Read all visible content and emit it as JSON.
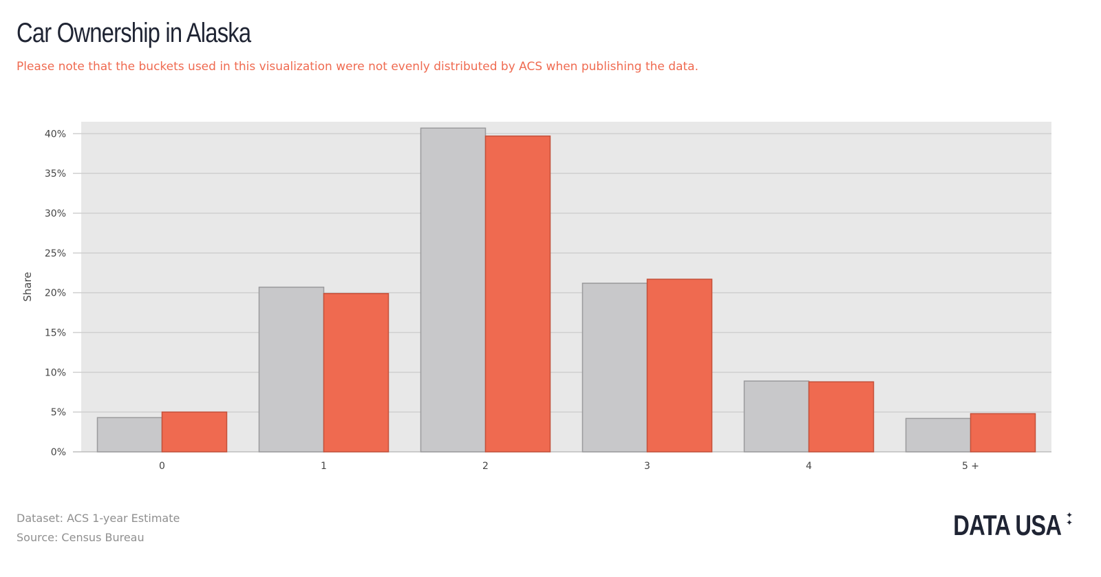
{
  "header": {
    "title": "Car Ownership in Alaska",
    "subtitle": "Please note that the buckets used in this visualization were not evenly distributed by ACS when publishing the data."
  },
  "footer": {
    "dataset": "Dataset: ACS 1-year Estimate",
    "source": "Source: Census Bureau",
    "logo": "DATA USA"
  },
  "colors": {
    "grey_series": "#c8c8ca",
    "orange_series": "#ef6a50",
    "plot_background": "#e8e8e8"
  },
  "chart_data": {
    "type": "bar",
    "title": "Car Ownership in Alaska",
    "xlabel": "",
    "ylabel": "Share",
    "categories": [
      "0",
      "1",
      "2",
      "3",
      "4",
      "5 +"
    ],
    "series": [
      {
        "values": [
          4.3,
          20.7,
          40.7,
          21.2,
          8.9,
          4.2
        ],
        "color": "#c8c8ca"
      },
      {
        "values": [
          5.0,
          19.9,
          39.7,
          21.7,
          8.8,
          4.8
        ],
        "color": "#ef6a50"
      }
    ],
    "ylim": [
      0,
      41.5
    ],
    "yticks": [
      "0%",
      "5%",
      "10%",
      "15%",
      "20%",
      "25%",
      "30%",
      "35%",
      "40%"
    ],
    "grid": true,
    "legend": "none"
  }
}
